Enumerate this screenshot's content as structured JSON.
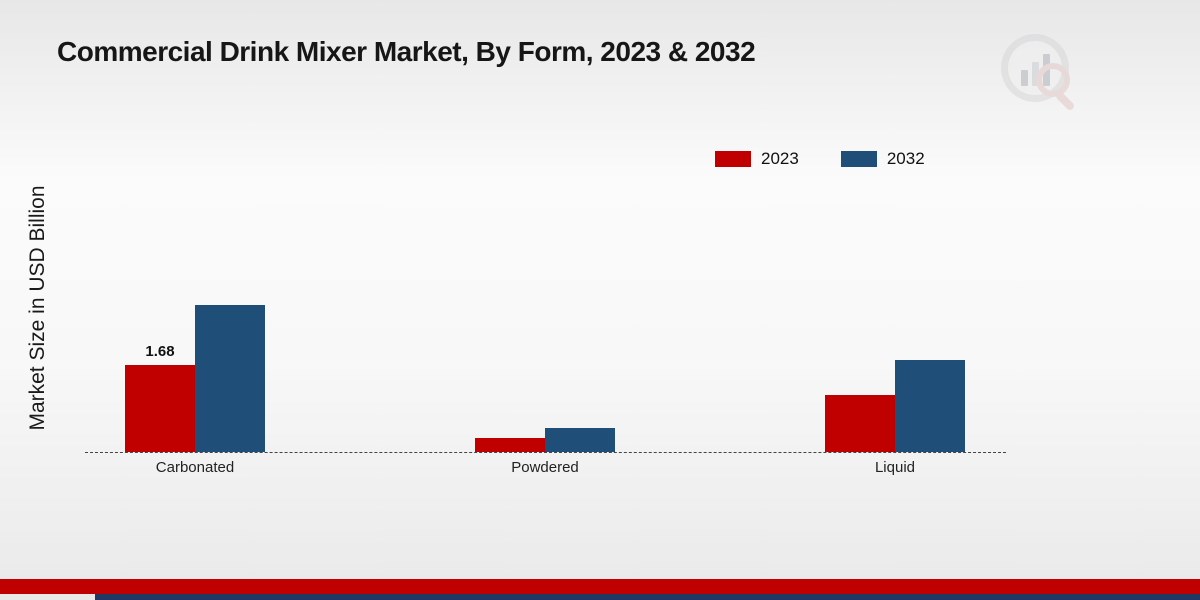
{
  "title": "Commercial Drink Mixer Market, By Form, 2023 & 2032",
  "y_axis_label": "Market Size in USD Billion",
  "legend": {
    "items": [
      {
        "label": "2023",
        "color": "#c00000"
      },
      {
        "label": "2032",
        "color": "#1f4e79"
      }
    ]
  },
  "chart_data": {
    "type": "bar",
    "title": "Commercial Drink Mixer Market, By Form, 2023 & 2032",
    "xlabel": "",
    "ylabel": "Market Size in USD Billion",
    "categories": [
      "Carbonated",
      "Powdered",
      "Liquid"
    ],
    "series": [
      {
        "name": "2023",
        "color": "#c00000",
        "values": [
          1.68,
          0.28,
          1.1
        ],
        "labels": [
          "1.68",
          "",
          ""
        ]
      },
      {
        "name": "2032",
        "color": "#1f4e79",
        "values": [
          2.84,
          0.46,
          1.78
        ],
        "labels": [
          "",
          "",
          ""
        ]
      }
    ],
    "ylim": [
      0,
      3.1
    ],
    "grid": false,
    "legend_position": "top-right",
    "baseline_style": "dashed",
    "annotated_values": [
      {
        "category": "Carbonated",
        "series": "2023",
        "text": "1.68"
      }
    ]
  },
  "footer": {
    "red_band_color": "#c00000",
    "navy_band_color": "#1f3864"
  },
  "watermark": {
    "name": "market-research-logo"
  }
}
